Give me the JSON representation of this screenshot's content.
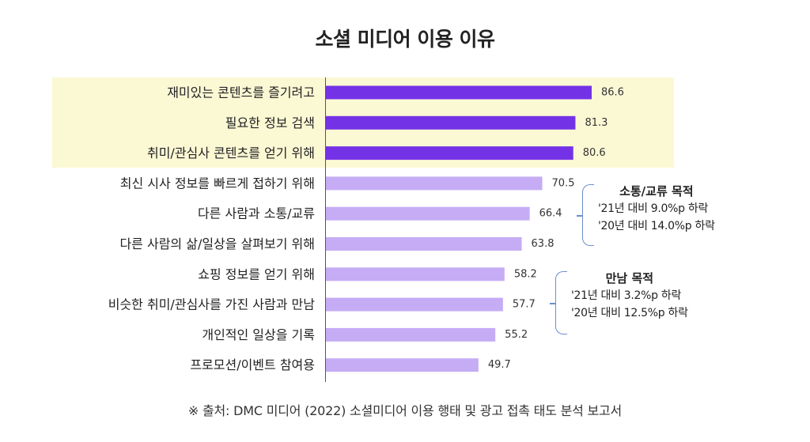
{
  "title": "소셜 미디어 이용 이유",
  "chart_data": {
    "type": "bar",
    "orientation": "horizontal",
    "title": "소셜 미디어 이용 이유",
    "categories": [
      "재미있는 콘텐츠를 즐기려고",
      "필요한 정보 검색",
      "취미/관심사 콘텐츠를 얻기 위해",
      "최신 시사 정보를 빠르게 접하기 위해",
      "다른 사람과 소통/교류",
      "다른 사람의 삶/일상을 살펴보기 위해",
      "쇼핑 정보를 얻기 위해",
      "비슷한 취미/관심사를 가진 사람과 만남",
      "개인적인 일상을 기록",
      "프로모션/이벤트 참여용"
    ],
    "values": [
      86.6,
      81.3,
      80.6,
      70.5,
      66.4,
      63.8,
      58.2,
      57.7,
      55.2,
      49.7
    ],
    "value_labels": [
      "86.6",
      "81.3",
      "80.6",
      "70.5",
      "66.4",
      "63.8",
      "58.2",
      "57.7",
      "55.2",
      "49.7"
    ],
    "highlight_top_n": 3,
    "xlim": [
      0,
      100
    ],
    "grid": false,
    "colors": {
      "top": "#7432e6",
      "rest": "#c5acf5",
      "highlight_bg": "#fbf8d4"
    }
  },
  "annotations": [
    {
      "heading": "소통/교류 목적",
      "lines": [
        "'21년 대비 9.0%p 하락",
        "'20년 대비 14.0%p 하락"
      ]
    },
    {
      "heading": "만남 목적",
      "lines": [
        "'21년 대비 3.2%p 하락",
        "'20년 대비 12.5%p 하락"
      ]
    }
  ],
  "source": "※ 출처: DMC 미디어 (2022) 소셜미디어 이용 행태 및 광고 접촉 태도 분석 보고서"
}
